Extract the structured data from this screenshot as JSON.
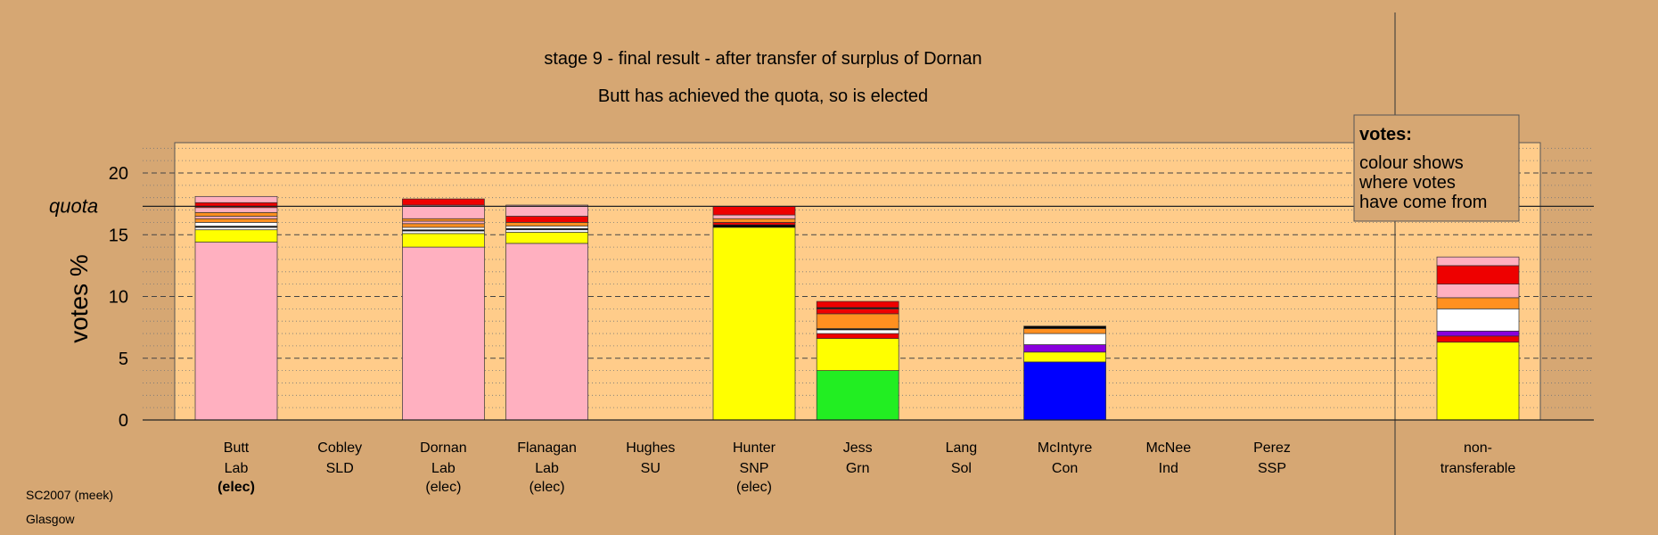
{
  "chart_data": {
    "type": "bar",
    "stacked": true,
    "title": "stage 9 - final result - after transfer of surplus of Dornan",
    "subtitle": "Butt has achieved the quota, so is elected",
    "ylabel": "votes %",
    "ylim": [
      0,
      22.5
    ],
    "yticks": [
      0,
      5,
      10,
      15,
      20
    ],
    "quota": 17.3,
    "quota_label": "quota",
    "grid": true,
    "legend": {
      "placement": "top-right",
      "title": "votes:",
      "lines": [
        "colour shows",
        "where votes",
        "have come from"
      ]
    },
    "footer": [
      "SC2007 (meek)",
      "Glasgow"
    ],
    "colors": {
      "Lab": "#ffb0c0",
      "SNP": "#ffff00",
      "Grn": "#22ee22",
      "Con": "#0000ff",
      "SLD": "#ff9020",
      "SSP": "#ee0000",
      "Sol": "#8800dd",
      "Ind": "#ffffff",
      "SU": "#000000"
    },
    "candidates": [
      {
        "name": "Butt",
        "party": "Lab",
        "status": "(elec)",
        "status_bold": true,
        "segments": [
          [
            "Lab",
            14.4
          ],
          [
            "SNP",
            1.0
          ],
          [
            "Ind",
            0.2
          ],
          [
            "SU",
            0.1
          ],
          [
            "Ind",
            0.3
          ],
          [
            "SLD",
            0.3
          ],
          [
            "Lab",
            0.2
          ],
          [
            "SLD",
            0.3
          ],
          [
            "Lab",
            0.4
          ],
          [
            "SSP",
            0.4
          ],
          [
            "Lab",
            0.5
          ]
        ]
      },
      {
        "name": "Cobley",
        "party": "SLD",
        "status": "",
        "segments": []
      },
      {
        "name": "Dornan",
        "party": "Lab",
        "status": "(elec)",
        "segments": [
          [
            "Lab",
            14.0
          ],
          [
            "SNP",
            1.1
          ],
          [
            "Ind",
            0.2
          ],
          [
            "SU",
            0.1
          ],
          [
            "Ind",
            0.2
          ],
          [
            "SLD",
            0.3
          ],
          [
            "Lab",
            0.2
          ],
          [
            "SLD",
            0.2
          ],
          [
            "Lab",
            1.1
          ],
          [
            "SSP",
            0.5
          ]
        ]
      },
      {
        "name": "Flanagan",
        "party": "Lab",
        "status": "(elec)",
        "segments": [
          [
            "Lab",
            14.3
          ],
          [
            "SNP",
            0.9
          ],
          [
            "Ind",
            0.2
          ],
          [
            "SU",
            0.1
          ],
          [
            "Ind",
            0.2
          ],
          [
            "SLD",
            0.3
          ],
          [
            "SSP",
            0.5
          ],
          [
            "Lab",
            0.9
          ]
        ]
      },
      {
        "name": "Hughes",
        "party": "SU",
        "status": "",
        "segments": []
      },
      {
        "name": "Hunter",
        "party": "SNP",
        "status": "(elec)",
        "segments": [
          [
            "SNP",
            15.6
          ],
          [
            "SU",
            0.2
          ],
          [
            "SSP",
            0.2
          ],
          [
            "SLD",
            0.3
          ],
          [
            "Lab",
            0.3
          ],
          [
            "SSP",
            0.7
          ]
        ]
      },
      {
        "name": "Jess",
        "party": "Grn",
        "status": "",
        "segments": [
          [
            "Grn",
            4.0
          ],
          [
            "SNP",
            2.6
          ],
          [
            "SSP",
            0.4
          ],
          [
            "Ind",
            0.3
          ],
          [
            "SU",
            0.1
          ],
          [
            "SLD",
            1.2
          ],
          [
            "SSP",
            0.4
          ],
          [
            "SU",
            0.1
          ],
          [
            "SSP",
            0.5
          ]
        ]
      },
      {
        "name": "Lang",
        "party": "Sol",
        "status": "",
        "segments": []
      },
      {
        "name": "McIntyre",
        "party": "Con",
        "status": "",
        "segments": [
          [
            "Con",
            4.7
          ],
          [
            "SNP",
            0.8
          ],
          [
            "Sol",
            0.6
          ],
          [
            "Ind",
            0.9
          ],
          [
            "SLD",
            0.4
          ],
          [
            "SU",
            0.2
          ]
        ]
      },
      {
        "name": "McNee",
        "party": "Ind",
        "status": "",
        "segments": []
      },
      {
        "name": "Perez",
        "party": "SSP",
        "status": "",
        "segments": []
      }
    ],
    "nontransferable": {
      "label_lines": [
        "non-",
        "transferable"
      ],
      "segments": [
        [
          "SNP",
          6.3
        ],
        [
          "SSP",
          0.5
        ],
        [
          "Sol",
          0.4
        ],
        [
          "Ind",
          1.8
        ],
        [
          "SLD",
          0.9
        ],
        [
          "Lab",
          1.1
        ],
        [
          "SSP",
          1.5
        ],
        [
          "Lab",
          0.7
        ]
      ]
    }
  }
}
